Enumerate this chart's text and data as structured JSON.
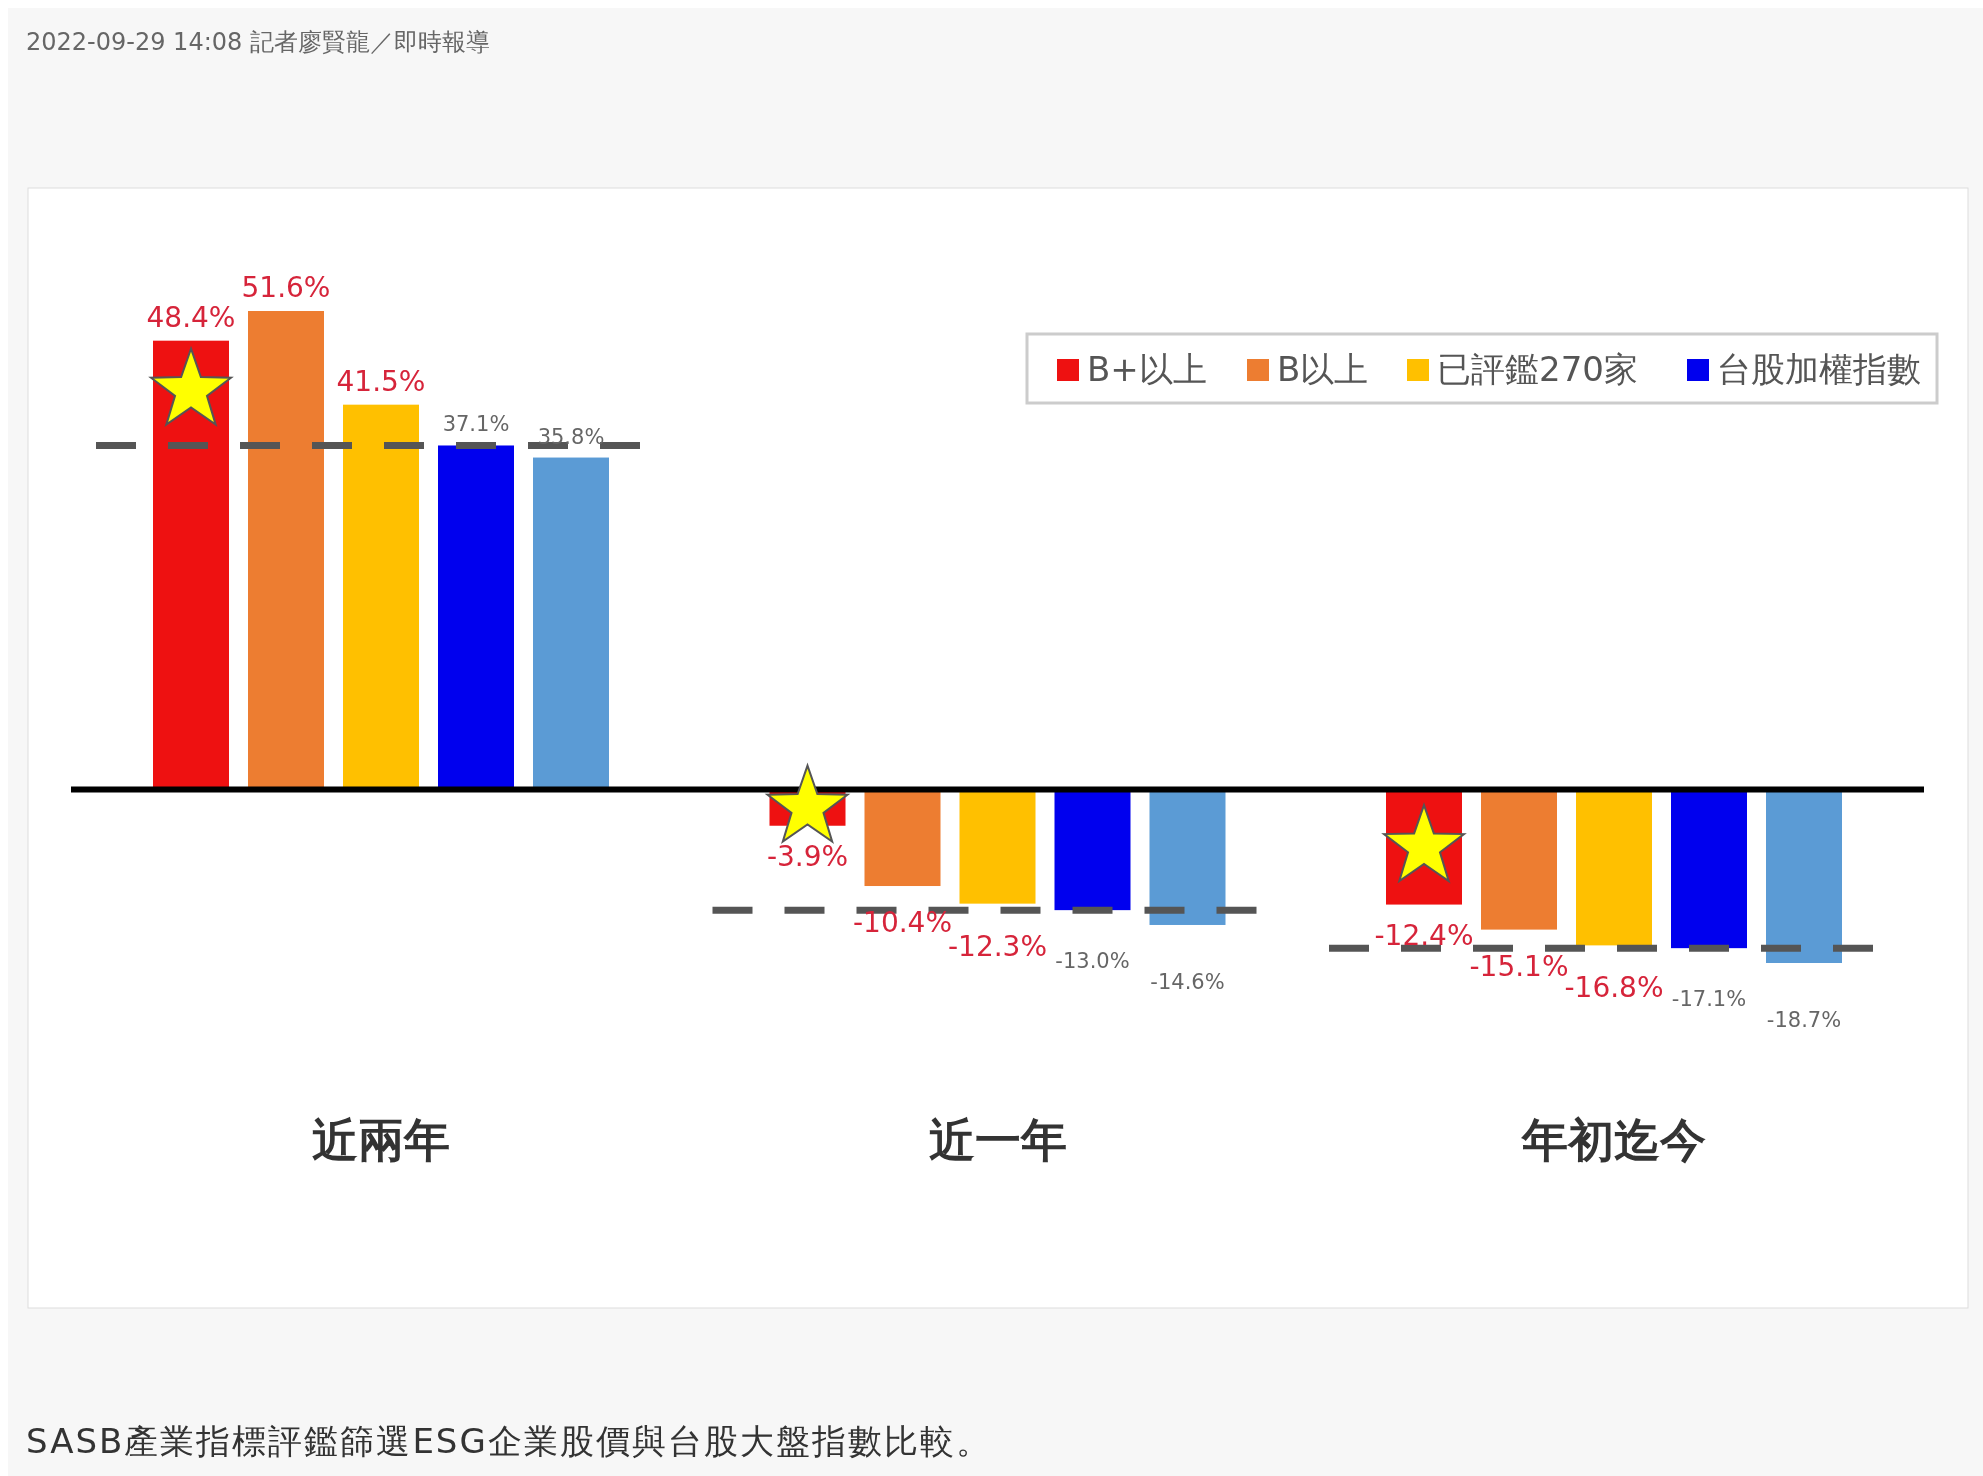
{
  "chart_data": {
    "type": "bar",
    "title": "SASB產業指標評鑑篩選ESG企業股價與台股大盤指數比較。",
    "annotations": [
      "2022-09-29 14:08 記者廖賢龍／即時報導"
    ],
    "categories": [
      "近兩年",
      "近一年",
      "年初迄今"
    ],
    "series": [
      {
        "name": "B+以上",
        "color": "#ee1111",
        "values": [
          48.4,
          -3.9,
          -12.4
        ],
        "value_labels": [
          "48.4%",
          "-3.9%",
          "-12.4%"
        ]
      },
      {
        "name": "B以上",
        "color": "#ed7d31",
        "values": [
          51.6,
          -10.4,
          -15.1
        ],
        "value_labels": [
          "51.6%",
          "-10.4%",
          "-15.1%"
        ]
      },
      {
        "name": "已評鑑270家",
        "color": "#ffc000",
        "values": [
          41.5,
          -12.3,
          -16.8
        ],
        "value_labels": [
          "41.5%",
          "-12.3%",
          "-16.8%"
        ]
      },
      {
        "name": "台股加權指數",
        "color": "#0000ee",
        "values": [
          37.1,
          -13.0,
          -17.1
        ],
        "value_labels": [
          "37.1%",
          "-13.0%",
          "-17.1%"
        ]
      },
      {
        "color": "#5b9bd5",
        "values": [
          35.8,
          -14.6,
          -18.7
        ],
        "value_labels": [
          "35.8%",
          "-14.6%",
          "-18.7%"
        ]
      }
    ],
    "ref_lines": [
      {
        "axis": "y",
        "value": 37.1,
        "color": "#555555",
        "line_style": "dashed"
      },
      {
        "axis": "y",
        "value": -13.0,
        "color": "#555555",
        "line_style": "dashed"
      },
      {
        "axis": "y",
        "value": -17.1,
        "color": "#555555",
        "line_style": "dashed"
      }
    ],
    "legend": "top right"
  }
}
